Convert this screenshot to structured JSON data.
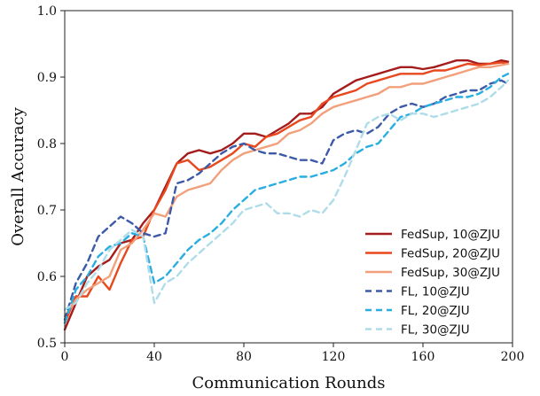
{
  "chart_data": {
    "type": "line",
    "title": "",
    "xlabel": "Communication Rounds",
    "ylabel": "Overall Accuracy",
    "xlim": [
      0,
      200
    ],
    "ylim": [
      0.5,
      1.0
    ],
    "xticks": [
      "0",
      "40",
      "80",
      "120",
      "160",
      "200"
    ],
    "yticks": [
      "0.5",
      "0.6",
      "0.7",
      "0.8",
      "0.9",
      "1.0"
    ],
    "grid": false,
    "legend_position": "bottom-right",
    "series": [
      {
        "name": "FedSup, 10@ZJU",
        "color": "#a51c1c",
        "dash": "solid",
        "x": [
          0,
          5,
          10,
          15,
          20,
          25,
          30,
          35,
          40,
          45,
          50,
          55,
          60,
          65,
          70,
          75,
          80,
          85,
          90,
          95,
          100,
          105,
          110,
          115,
          120,
          125,
          130,
          135,
          140,
          145,
          150,
          155,
          160,
          165,
          170,
          175,
          180,
          185,
          190,
          195,
          198
        ],
        "y": [
          0.52,
          0.56,
          0.6,
          0.615,
          0.625,
          0.65,
          0.655,
          0.68,
          0.7,
          0.735,
          0.77,
          0.785,
          0.79,
          0.785,
          0.79,
          0.8,
          0.815,
          0.815,
          0.81,
          0.82,
          0.83,
          0.845,
          0.845,
          0.855,
          0.875,
          0.885,
          0.895,
          0.9,
          0.905,
          0.91,
          0.915,
          0.915,
          0.912,
          0.915,
          0.92,
          0.925,
          0.925,
          0.92,
          0.92,
          0.925,
          0.923
        ]
      },
      {
        "name": "FedSup, 20@ZJU",
        "color": "#e8481e",
        "dash": "solid",
        "x": [
          0,
          5,
          10,
          15,
          20,
          25,
          30,
          35,
          40,
          45,
          50,
          55,
          60,
          65,
          70,
          75,
          80,
          85,
          90,
          95,
          100,
          105,
          110,
          115,
          120,
          125,
          130,
          135,
          140,
          145,
          150,
          155,
          160,
          165,
          170,
          175,
          180,
          185,
          190,
          195,
          198
        ],
        "y": [
          0.53,
          0.57,
          0.57,
          0.6,
          0.58,
          0.62,
          0.655,
          0.66,
          0.7,
          0.73,
          0.77,
          0.775,
          0.76,
          0.765,
          0.775,
          0.785,
          0.8,
          0.795,
          0.81,
          0.815,
          0.825,
          0.835,
          0.84,
          0.86,
          0.87,
          0.875,
          0.88,
          0.89,
          0.895,
          0.9,
          0.905,
          0.905,
          0.905,
          0.91,
          0.91,
          0.915,
          0.92,
          0.918,
          0.92,
          0.922,
          0.92
        ]
      },
      {
        "name": "FedSup, 30@ZJU",
        "color": "#f2a07b",
        "dash": "solid",
        "x": [
          0,
          5,
          10,
          15,
          20,
          25,
          30,
          35,
          40,
          45,
          50,
          55,
          60,
          65,
          70,
          75,
          80,
          85,
          90,
          95,
          100,
          105,
          110,
          115,
          120,
          125,
          130,
          135,
          140,
          145,
          150,
          155,
          160,
          165,
          170,
          175,
          180,
          185,
          190,
          195,
          198
        ],
        "y": [
          0.54,
          0.565,
          0.58,
          0.59,
          0.6,
          0.64,
          0.65,
          0.67,
          0.695,
          0.69,
          0.72,
          0.73,
          0.735,
          0.74,
          0.76,
          0.775,
          0.785,
          0.79,
          0.795,
          0.8,
          0.815,
          0.82,
          0.83,
          0.845,
          0.855,
          0.86,
          0.865,
          0.87,
          0.875,
          0.885,
          0.885,
          0.89,
          0.89,
          0.895,
          0.9,
          0.905,
          0.91,
          0.915,
          0.915,
          0.918,
          0.92
        ]
      },
      {
        "name": "FL, 10@ZJU",
        "color": "#3d5aa8",
        "dash": "7 5",
        "x": [
          0,
          5,
          10,
          15,
          20,
          25,
          30,
          35,
          40,
          45,
          50,
          55,
          60,
          65,
          70,
          75,
          80,
          85,
          90,
          95,
          100,
          105,
          110,
          115,
          120,
          125,
          130,
          135,
          140,
          145,
          150,
          155,
          160,
          165,
          170,
          175,
          180,
          185,
          190,
          195,
          198
        ],
        "y": [
          0.535,
          0.59,
          0.62,
          0.66,
          0.675,
          0.69,
          0.68,
          0.665,
          0.66,
          0.665,
          0.74,
          0.745,
          0.755,
          0.77,
          0.785,
          0.795,
          0.8,
          0.79,
          0.785,
          0.785,
          0.78,
          0.775,
          0.775,
          0.77,
          0.805,
          0.815,
          0.82,
          0.815,
          0.825,
          0.845,
          0.855,
          0.86,
          0.855,
          0.86,
          0.87,
          0.875,
          0.88,
          0.88,
          0.89,
          0.895,
          0.89
        ]
      },
      {
        "name": "FL, 20@ZJU",
        "color": "#2aaee0",
        "dash": "7 5",
        "x": [
          0,
          5,
          10,
          15,
          20,
          25,
          30,
          35,
          40,
          45,
          50,
          55,
          60,
          65,
          70,
          75,
          80,
          85,
          90,
          95,
          100,
          105,
          110,
          115,
          120,
          125,
          130,
          135,
          140,
          145,
          150,
          155,
          160,
          165,
          170,
          175,
          180,
          185,
          190,
          195,
          198
        ],
        "y": [
          0.53,
          0.58,
          0.6,
          0.63,
          0.645,
          0.65,
          0.665,
          0.66,
          0.59,
          0.6,
          0.62,
          0.64,
          0.655,
          0.665,
          0.68,
          0.7,
          0.715,
          0.73,
          0.735,
          0.74,
          0.745,
          0.75,
          0.75,
          0.755,
          0.76,
          0.77,
          0.785,
          0.795,
          0.8,
          0.82,
          0.84,
          0.845,
          0.855,
          0.86,
          0.865,
          0.87,
          0.87,
          0.875,
          0.885,
          0.9,
          0.905
        ]
      },
      {
        "name": "FL, 30@ZJU",
        "color": "#aedce8",
        "dash": "7 5",
        "x": [
          0,
          5,
          10,
          15,
          20,
          25,
          30,
          35,
          40,
          45,
          50,
          55,
          60,
          65,
          70,
          75,
          80,
          85,
          90,
          95,
          100,
          105,
          110,
          115,
          120,
          125,
          130,
          135,
          140,
          145,
          150,
          155,
          160,
          165,
          170,
          175,
          180,
          185,
          190,
          195,
          198
        ],
        "y": [
          0.55,
          0.56,
          0.59,
          0.61,
          0.64,
          0.655,
          0.67,
          0.66,
          0.56,
          0.59,
          0.6,
          0.62,
          0.635,
          0.65,
          0.665,
          0.68,
          0.7,
          0.705,
          0.71,
          0.695,
          0.695,
          0.69,
          0.7,
          0.695,
          0.715,
          0.75,
          0.79,
          0.83,
          0.84,
          0.845,
          0.835,
          0.845,
          0.845,
          0.84,
          0.845,
          0.85,
          0.855,
          0.86,
          0.87,
          0.885,
          0.895
        ]
      }
    ]
  }
}
